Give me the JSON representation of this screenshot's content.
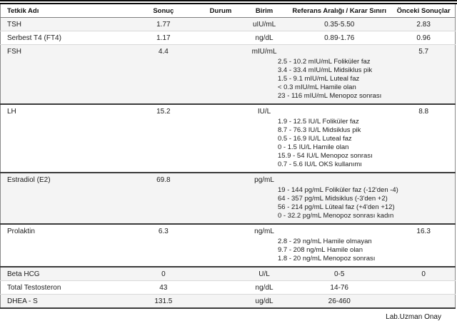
{
  "report": {
    "columns": {
      "test_name": "Tetkik Adı",
      "result": "Sonuç",
      "status": "Durum",
      "unit": "Birim",
      "reference_range": "Referans Aralığı / Karar Sınırı",
      "previous_results": "Önceki Sonuçlar"
    },
    "rows": [
      {
        "name": "TSH",
        "result": "1.77",
        "status": "",
        "unit": "uIU/mL",
        "range": "0.35-5.50",
        "previous": "2.83",
        "details": []
      },
      {
        "name": "Serbest T4 (FT4)",
        "result": "1.17",
        "status": "",
        "unit": "ng/dL",
        "range": "0.89-1.76",
        "previous": "0.96",
        "details": []
      },
      {
        "name": "FSH",
        "result": "4.4",
        "status": "",
        "unit": "mIU/mL",
        "range": "",
        "previous": "5.7",
        "details": [
          "2.5 - 10.2 mIU/mL Foliküler faz",
          "3.4 - 33.4 mIU/mL Midsiklus pik",
          "1.5 - 9.1 mIU/mL Luteal faz",
          "< 0.3 mIU/mL Hamile olan",
          "23 - 116 mIU/mL Menopoz sonrası"
        ]
      },
      {
        "name": "LH",
        "result": "15.2",
        "status": "",
        "unit": "IU/L",
        "range": "",
        "previous": "8.8",
        "details": [
          "1.9 - 12.5 IU/L Foliküler faz",
          "8.7 - 76.3 IU/L Midsiklus pik",
          "0.5 - 16.9 IU/L Luteal faz",
          "0 - 1.5 IU/L Hamile olan",
          "15.9 - 54 IU/L Menopoz sonrası",
          "0.7 - 5.6 IU/L OKS kullanımı"
        ]
      },
      {
        "name": "Estradiol (E2)",
        "result": "69.8",
        "status": "",
        "unit": "pg/mL",
        "range": "",
        "previous": "",
        "details": [
          "19 - 144 pg/mL Foliküler faz (-12'den -4)",
          "64 - 357 pg/mL Midsiklus (-3'den +2)",
          "56 - 214 pg/mL Lüteal faz (+4'den +12)",
          "0 - 32.2 pg/mL Menopoz sonrası kadın"
        ]
      },
      {
        "name": "Prolaktin",
        "result": "6.3",
        "status": "",
        "unit": "ng/mL",
        "range": "",
        "previous": "16.3",
        "details": [
          "2.8 - 29 ng/mL Hamile olmayan",
          "9.7 - 208 ng/mL Hamile olan",
          "1.8 - 20 ng/mL Menopoz sonrası"
        ]
      },
      {
        "name": "Beta HCG",
        "result": "0",
        "status": "",
        "unit": "U/L",
        "range": "0-5",
        "previous": "0",
        "details": []
      },
      {
        "name": "Total Testosteron",
        "result": "43",
        "status": "",
        "unit": "ng/dL",
        "range": "14-76",
        "previous": "",
        "details": []
      },
      {
        "name": "DHEA - S",
        "result": "131.5",
        "status": "",
        "unit": "ug/dL",
        "range": "26-460",
        "previous": "",
        "details": []
      }
    ],
    "footer_signature": "Lab.Uzman Onay",
    "colors": {
      "stripe_row": "#f4f4f4",
      "light_separator": "#d9d9d9",
      "block_separator": "#3a3a3a",
      "top_rule": "#0a0a0a",
      "text": "#1c1c1c"
    }
  }
}
